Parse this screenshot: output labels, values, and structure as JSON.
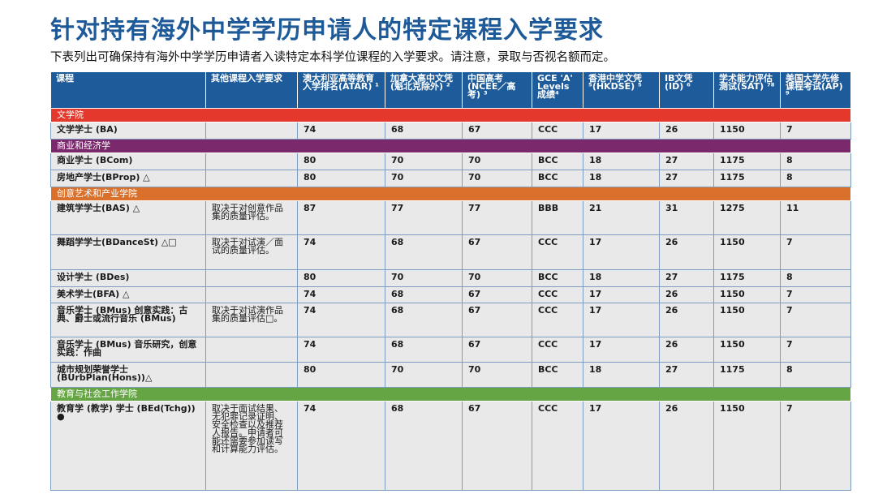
{
  "header": {
    "title": "针对持有海外中学学历申请人的特定课程入学要求",
    "subtitle": "下表列出可确保持有海外中学学历申请者入读特定本科学位课程的入学要求。请注意，录取与否视名额而定。"
  },
  "table": {
    "columns": [
      "课程",
      "其他课程入学要求",
      "澳大利亚高等教育入学排名(ATAR) ¹",
      "加拿大高中文凭(魁北克除外) ²",
      "中国高考(NCEE／高考) ³",
      "GCE 'A' Levels成绩⁴",
      "香港中学文凭⁵(HKDSE) ⁵",
      "IB文凭(ID) ⁶",
      "学术能力评估测试(SAT) ⁷⁸",
      "美国大学先修课程考试(AP) ⁹"
    ],
    "sections": [
      {
        "name": "文学院",
        "rows": [
          [
            "文学学士 (BA)",
            null,
            74,
            68,
            67,
            "CCC",
            17,
            26,
            1150,
            7
          ]
        ]
      },
      {
        "name": "商业和经济学",
        "rows": [
          [
            "商业学士 (BCom)",
            null,
            80,
            70,
            70,
            "BCC",
            18,
            27,
            1175,
            8
          ],
          [
            "房地产学士(BProp) △",
            null,
            80,
            70,
            70,
            "BCC",
            18,
            27,
            1175,
            8
          ]
        ]
      },
      {
        "name": "创意艺术和产业学院",
        "rows": [
          [
            "建筑学学士(BAS) △",
            "取决于对创意作品集的质量评估。",
            87,
            77,
            77,
            "BBB",
            21,
            31,
            1275,
            11
          ],
          [
            "舞蹈学学士(BDanceSt) △□",
            "取决于对试演／面试的质量评估。",
            74,
            68,
            67,
            "CCC",
            17,
            26,
            1150,
            7
          ],
          [
            "设计学士 (BDes)",
            null,
            80,
            70,
            70,
            "BCC",
            18,
            27,
            1175,
            8
          ],
          [
            "美术学士(BFA) △",
            null,
            74,
            68,
            67,
            "CCC",
            17,
            26,
            1150,
            7
          ],
          [
            "音乐学士 (BMus) 创意实践：古典、爵士或流行音乐 (BMus)",
            "取决于对试演作品集的质量评估□。",
            74,
            68,
            67,
            "CCC",
            17,
            26,
            1150,
            7
          ],
          [
            "音乐学士 (BMus) 音乐研究，创意实践：作曲",
            null,
            74,
            68,
            67,
            "CCC",
            17,
            26,
            1150,
            7
          ],
          [
            "城市规划荣誉学士 (BUrbPlan(Hons))△",
            null,
            80,
            70,
            70,
            "BCC",
            18,
            27,
            1175,
            8
          ]
        ]
      },
      {
        "name": "教育与社会工作学院",
        "rows": [
          [
            "教育学 (教学) 学士 (BEd(Tchg)) ●",
            "取决于面试结果、无犯罪记录证明、安全检查以及推荐人报告。申请者可能还需要参加读写和计算能力评估。",
            74,
            68,
            67,
            "CCC",
            17,
            26,
            1150,
            7
          ]
        ]
      }
    ]
  }
}
